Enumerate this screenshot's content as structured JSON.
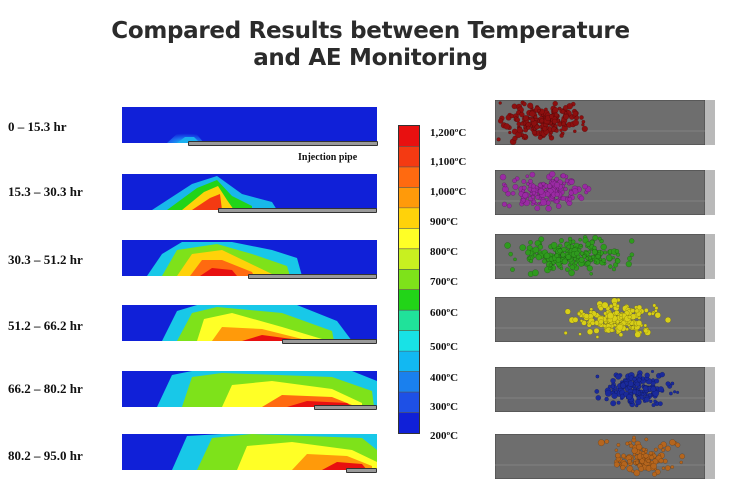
{
  "title_line1": "Compared Results between Temperature",
  "title_line2": "and AE Monitoring",
  "pipe_label": "Injection pipe",
  "rows": [
    {
      "label": "0 – 15.3 hr",
      "ae_color": "#8c0f0f"
    },
    {
      "label": "15.3 – 30.3 hr",
      "ae_color": "#9a2aa3"
    },
    {
      "label": "30.3 – 51.2 hr",
      "ae_color": "#2f9a1e"
    },
    {
      "label": "51.2 – 66.2 hr",
      "ae_color": "#d8cf18"
    },
    {
      "label": "66.2 – 80.2 hr",
      "ae_color": "#1a2a9c"
    },
    {
      "label": "80.2 – 95.0 hr",
      "ae_color": "#b5651d"
    }
  ],
  "colorbar": {
    "labels": [
      "1,200ºC",
      "1,100ºC",
      "1,000ºC",
      "900ºC",
      "800ºC",
      "700ºC",
      "600ºC",
      "500ºC",
      "400ºC",
      "300ºC",
      "200ºC"
    ],
    "colors": [
      "#e81010",
      "#f43a12",
      "#ff6a10",
      "#ff9a0a",
      "#ffd20a",
      "#ffff26",
      "#c8f020",
      "#7ee21a",
      "#22d418",
      "#20e29a",
      "#18e2e6",
      "#12b8f2",
      "#1a80ee",
      "#1e50e6",
      "#1020d8"
    ]
  }
}
